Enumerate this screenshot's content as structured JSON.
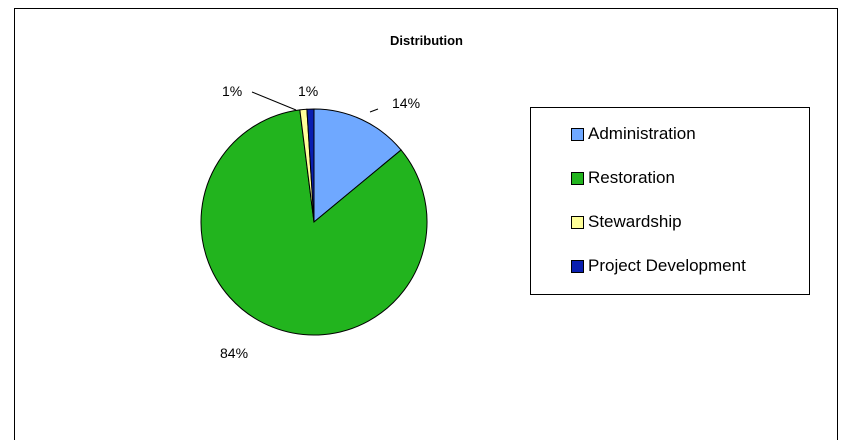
{
  "chart_data": {
    "type": "pie",
    "title": "Distribution",
    "slices": [
      {
        "name": "Administration",
        "value": 14,
        "label": "14%",
        "color": "#6fa8ff"
      },
      {
        "name": "Restoration",
        "value": 84,
        "label": "84%",
        "color": "#22b41e"
      },
      {
        "name": "Stewardship",
        "value": 1,
        "label": "1%",
        "color": "#ffff99"
      },
      {
        "name": "Project Development",
        "value": 1,
        "label": "1%",
        "color": "#0a1fb0"
      }
    ],
    "legend_position": "right"
  }
}
